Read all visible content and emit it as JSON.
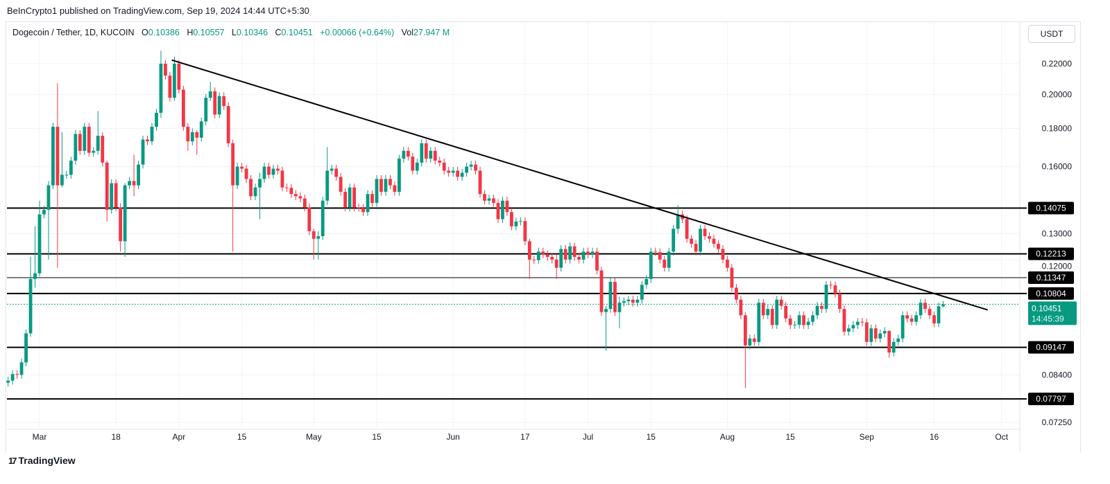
{
  "header": {
    "published": "BeInCrypto1 published on TradingView.com, Sep 19, 2024 14:44 UTC+5:30"
  },
  "legend": {
    "symbol": "Dogecoin / Tether, 1D, KUCOIN",
    "o_label": "O",
    "o": "0.10386",
    "h_label": "H",
    "h": "0.10557",
    "l_label": "L",
    "l": "0.10346",
    "c_label": "C",
    "c": "0.10451",
    "change": "+0.00066 (+0.64%)",
    "vol_label": "Vol",
    "vol": "27.947 M"
  },
  "currency_button": "USDT",
  "footer": {
    "brand": "TradingView"
  },
  "colors": {
    "up": "#089981",
    "down": "#f23645",
    "level": "#000000",
    "trend": "#000000"
  },
  "chart_data": {
    "type": "candlestick",
    "title": "Dogecoin / Tether, 1D, KUCOIN",
    "y_scale": "log",
    "ylim": [
      0.0705,
      0.232
    ],
    "y_ticks": [
      "0.22000",
      "0.20000",
      "0.18000",
      "0.16000",
      "0.13000",
      "0.12000",
      "0.08400",
      "0.07250"
    ],
    "x_ticks": [
      {
        "label": "Mar",
        "index": 7
      },
      {
        "label": "18",
        "index": 24
      },
      {
        "label": "Apr",
        "index": 38
      },
      {
        "label": "15",
        "index": 52
      },
      {
        "label": "May",
        "index": 68
      },
      {
        "label": "15",
        "index": 82
      },
      {
        "label": "Jun",
        "index": 99
      },
      {
        "label": "17",
        "index": 115
      },
      {
        "label": "Jul",
        "index": 129
      },
      {
        "label": "15",
        "index": 143
      },
      {
        "label": "Aug",
        "index": 160
      },
      {
        "label": "15",
        "index": 174
      },
      {
        "label": "Sep",
        "index": 191
      },
      {
        "label": "16",
        "index": 206
      },
      {
        "label": "Oct",
        "index": 221
      }
    ],
    "first_open": 0.082,
    "close": [
      0.0825,
      0.0842,
      0.084,
      0.0873,
      0.0955,
      0.113,
      0.115,
      0.138,
      0.14,
      0.151,
      0.181,
      0.151,
      0.156,
      0.156,
      0.163,
      0.177,
      0.168,
      0.181,
      0.167,
      0.168,
      0.176,
      0.162,
      0.14,
      0.152,
      0.141,
      0.127,
      0.151,
      0.153,
      0.151,
      0.161,
      0.174,
      0.173,
      0.181,
      0.189,
      0.22,
      0.212,
      0.198,
      0.22,
      0.203,
      0.181,
      0.173,
      0.178,
      0.175,
      0.184,
      0.198,
      0.202,
      0.188,
      0.199,
      0.193,
      0.172,
      0.151,
      0.16,
      0.159,
      0.154,
      0.146,
      0.15,
      0.154,
      0.16,
      0.156,
      0.159,
      0.158,
      0.15,
      0.1498,
      0.147,
      0.146,
      0.145,
      0.141,
      0.131,
      0.128,
      0.129,
      0.144,
      0.158,
      0.159,
      0.155,
      0.148,
      0.141,
      0.15,
      0.141,
      0.1408,
      0.139,
      0.147,
      0.143,
      0.154,
      0.148,
      0.154,
      0.151,
      0.148,
      0.164,
      0.168,
      0.165,
      0.158,
      0.162,
      0.172,
      0.164,
      0.168,
      0.163,
      0.162,
      0.158,
      0.157,
      0.158,
      0.155,
      0.157,
      0.16,
      0.161,
      0.158,
      0.147,
      0.144,
      0.145,
      0.143,
      0.136,
      0.144,
      0.139,
      0.133,
      0.135,
      0.1352,
      0.127,
      0.12,
      0.1198,
      0.123,
      0.122,
      0.121,
      0.12,
      0.117,
      0.124,
      0.12,
      0.125,
      0.121,
      0.12,
      0.123,
      0.122,
      0.123,
      0.116,
      0.102,
      0.103,
      0.112,
      0.102,
      0.105,
      0.1055,
      0.106,
      0.105,
      0.106,
      0.111,
      0.113,
      0.123,
      0.1228,
      0.12,
      0.117,
      0.123,
      0.132,
      0.138,
      0.136,
      0.128,
      0.126,
      0.123,
      0.132,
      0.129,
      0.128,
      0.126,
      0.124,
      0.12,
      0.117,
      0.11,
      0.106,
      0.101,
      0.092,
      0.094,
      0.093,
      0.105,
      0.101,
      0.103,
      0.098,
      0.106,
      0.104,
      0.1,
      0.098,
      0.0981,
      0.101,
      0.098,
      0.099,
      0.101,
      0.104,
      0.103,
      0.111,
      0.1108,
      0.108,
      0.103,
      0.096,
      0.097,
      0.098,
      0.099,
      0.0988,
      0.093,
      0.097,
      0.094,
      0.0955,
      0.0962,
      0.09,
      0.093,
      0.094,
      0.101,
      0.1,
      0.099,
      0.101,
      0.105,
      0.103,
      0.101,
      0.0985,
      0.10386,
      0.10451
    ],
    "wicks": {
      "5": [
        0.121,
        0.0945
      ],
      "6": [
        0.133,
        0.11
      ],
      "7": [
        0.144,
        0.114
      ],
      "9": [
        0.153,
        0.12
      ],
      "11": [
        0.207,
        0.117
      ],
      "12": [
        0.178,
        0.15
      ],
      "20": [
        0.19,
        0.166
      ],
      "22": [
        0.163,
        0.135
      ],
      "25": [
        0.143,
        0.123
      ],
      "26": [
        0.152,
        0.121
      ],
      "28": [
        0.166,
        0.146
      ],
      "34": [
        0.229,
        0.186
      ],
      "37": [
        0.225,
        0.196
      ],
      "40": [
        0.183,
        0.168
      ],
      "42": [
        0.179,
        0.166
      ],
      "45": [
        0.208,
        0.196
      ],
      "50": [
        0.174,
        0.123
      ],
      "56": [
        0.157,
        0.136
      ],
      "68": [
        0.132,
        0.12
      ],
      "69": [
        0.131,
        0.12
      ],
      "71": [
        0.17,
        0.142
      ],
      "116": [
        0.128,
        0.113
      ],
      "122": [
        0.122,
        0.113
      ],
      "133": [
        0.104,
        0.0905
      ],
      "136": [
        0.107,
        0.097
      ],
      "149": [
        0.142,
        0.13
      ],
      "164": [
        0.102,
        0.0806
      ],
      "196": [
        0.0965,
        0.0885
      ],
      "208": [
        0.10557,
        0.10346
      ]
    },
    "levels": [
      {
        "price": 0.14075,
        "label": "0.14075",
        "weight": "bold"
      },
      {
        "price": 0.12213,
        "label": "0.12213",
        "weight": "bold"
      },
      {
        "price": 0.11347,
        "label": "0.11347",
        "weight": "thin"
      },
      {
        "price": 0.10804,
        "label": "0.10804",
        "weight": "bold"
      },
      {
        "price": 0.09147,
        "label": "0.09147",
        "weight": "bold"
      },
      {
        "price": 0.07797,
        "label": "0.07797",
        "weight": "bold"
      }
    ],
    "trendline": {
      "start": [
        36.4,
        0.2225
      ],
      "end": [
        217.9,
        0.1027
      ]
    },
    "last_price": {
      "price": 0.10451,
      "label": "0.10451",
      "countdown": "14:45:39"
    }
  }
}
